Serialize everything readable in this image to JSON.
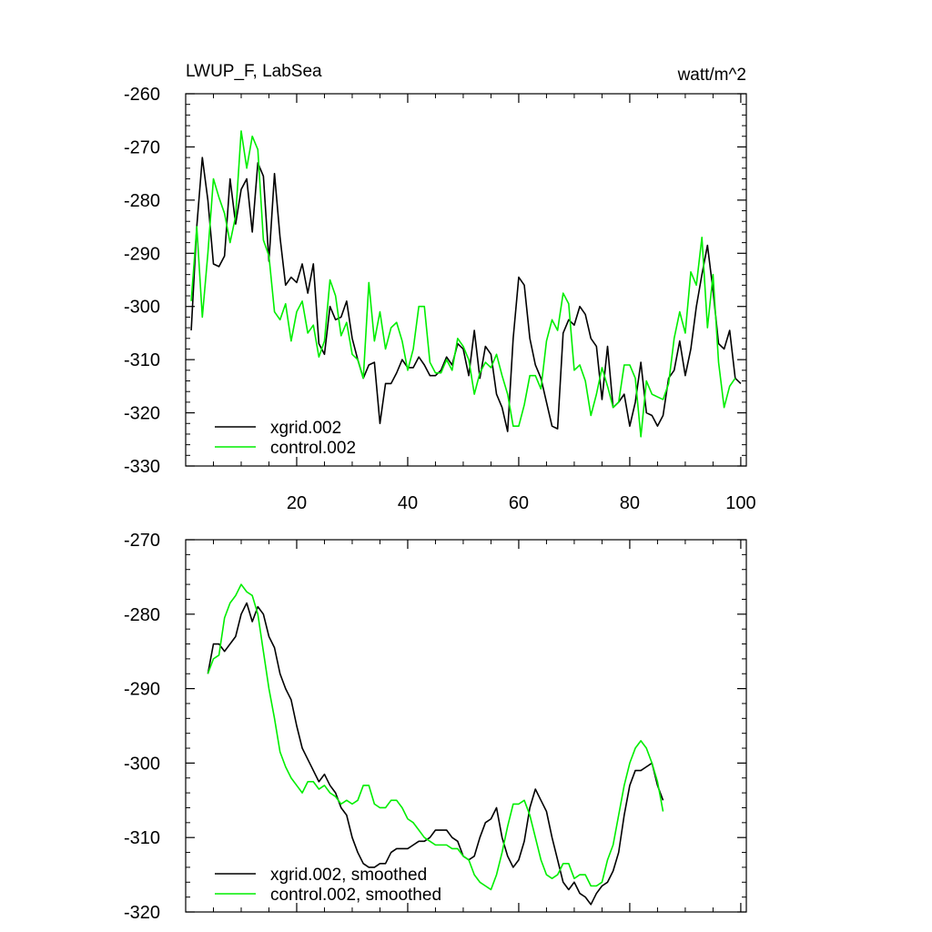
{
  "chart_data": [
    {
      "type": "line",
      "title": "LWUP_F, LabSea",
      "units": "watt/m^2",
      "xlim": [
        0,
        101
      ],
      "ylim": [
        -330,
        -260
      ],
      "xticks": [
        20,
        40,
        60,
        80,
        100
      ],
      "yticks": [
        -330,
        -320,
        -310,
        -300,
        -290,
        -280,
        -270,
        -260
      ],
      "x_tick_labels_shown": true,
      "grid": false,
      "legend_position": "bottom-left",
      "series": [
        {
          "name": "xgrid.002",
          "color": "#000000",
          "values": [
            -304.5,
            -285,
            -272,
            -280,
            -292,
            -292.5,
            -290.5,
            -276,
            -284.5,
            -278,
            -276,
            -286,
            -273,
            -275.5,
            -291.5,
            -275,
            -287,
            -296,
            -294.5,
            -295.5,
            -292,
            -297.5,
            -292,
            -307,
            -309,
            -300,
            -302.5,
            -302,
            -299,
            -306,
            -310,
            -313.5,
            -311,
            -310.5,
            -322,
            -314.5,
            -314.5,
            -312.5,
            -310,
            -311.5,
            -311.5,
            -309.5,
            -311,
            -313,
            -313,
            -312,
            -309.5,
            -311,
            -307,
            -308,
            -313,
            -304.5,
            -313.5,
            -307.5,
            -309,
            -316.5,
            -319,
            -323.5,
            -306,
            -294.5,
            -296,
            -306,
            -311,
            -313.5,
            -318,
            -322.5,
            -323,
            -305,
            -302.5,
            -303.5,
            -300,
            -301.5,
            -306,
            -307.5,
            -317.5,
            -307.5,
            -319,
            -318,
            -316.5,
            -322.5,
            -318,
            -310.5,
            -320,
            -320.5,
            -322.5,
            -320.5,
            -313.5,
            -312,
            -306.5,
            -313,
            -308,
            -300,
            -294,
            -288.5,
            -297,
            -307,
            -308,
            -304.5,
            -313.5,
            -314.5
          ]
        },
        {
          "name": "control.002",
          "color": "#00ee00",
          "values": [
            -299,
            -285,
            -302,
            -290,
            -276,
            -279.5,
            -282.5,
            -288,
            -283,
            -267,
            -274,
            -268,
            -270.5,
            -287.5,
            -290.5,
            -301,
            -302.5,
            -299.5,
            -306.5,
            -301,
            -299,
            -305,
            -303.5,
            -309.5,
            -306.5,
            -295,
            -298,
            -305.5,
            -303,
            -309,
            -310,
            -313.5,
            -295.5,
            -306.5,
            -301,
            -308,
            -304,
            -303,
            -306.5,
            -312,
            -308,
            -300,
            -300,
            -310.5,
            -312.5,
            -312.5,
            -310,
            -312,
            -306,
            -307.5,
            -310,
            -316.5,
            -312.5,
            -310.5,
            -311.5,
            -309,
            -313,
            -316.5,
            -322.5,
            -322.5,
            -318.5,
            -313,
            -313,
            -315.5,
            -306.5,
            -302.5,
            -304.5,
            -297.5,
            -299.5,
            -312,
            -311,
            -314,
            -320.5,
            -316.5,
            -311.5,
            -315,
            -319,
            -318,
            -311,
            -311,
            -313.5,
            -324.5,
            -314,
            -316.5,
            -317,
            -317.5,
            -314.5,
            -306,
            -301,
            -305,
            -293.5,
            -296,
            -287,
            -304,
            -294,
            -310.5,
            -319,
            -315,
            -313.5
          ]
        }
      ]
    },
    {
      "type": "line",
      "title": "",
      "xlim": [
        0,
        101
      ],
      "ylim": [
        -320,
        -270
      ],
      "xticks": [
        20,
        40,
        60,
        80,
        100
      ],
      "yticks": [
        -320,
        -310,
        -300,
        -290,
        -280,
        -270
      ],
      "x_tick_labels_shown": false,
      "grid": false,
      "legend_position": "bottom-left",
      "series": [
        {
          "name": "xgrid.002, smoothed",
          "color": "#000000",
          "values": [
            -288,
            -284,
            -284,
            -285,
            -284,
            -283,
            -280,
            -278.5,
            -281,
            -279,
            -280,
            -283,
            -284.5,
            -288,
            -290,
            -291.5,
            -295,
            -298,
            -299.5,
            -301,
            -302.5,
            -301.5,
            -303,
            -304,
            -306,
            -307,
            -310,
            -312,
            -313.5,
            -314,
            -314,
            -313.5,
            -313.5,
            -312,
            -311.5,
            -311.5,
            -311.5,
            -311,
            -310.5,
            -310.5,
            -310,
            -309,
            -309,
            -309,
            -310,
            -310.5,
            -312.5,
            -313,
            -312.5,
            -310,
            -308,
            -307.5,
            -306,
            -310,
            -312.5,
            -314,
            -313,
            -310.5,
            -306,
            -303.5,
            -305,
            -306.5,
            -310,
            -313,
            -316,
            -317,
            -316,
            -317.5,
            -318,
            -319,
            -317.5,
            -316.5,
            -316,
            -314.5,
            -312,
            -307,
            -303,
            -301,
            -301,
            -300.5,
            -300,
            -303,
            -305
          ]
        },
        {
          "name": "control.002, smoothed",
          "color": "#00ee00",
          "values": [
            -288,
            -286,
            -285.5,
            -280.5,
            -278.5,
            -277.5,
            -276,
            -277,
            -277.5,
            -280,
            -285,
            -290,
            -294,
            -298.5,
            -300.5,
            -302,
            -303,
            -304,
            -302.5,
            -302.5,
            -303.5,
            -303,
            -304,
            -304.5,
            -305.5,
            -305,
            -305.5,
            -305,
            -303,
            -303,
            -305.5,
            -306,
            -306,
            -305,
            -305,
            -306,
            -307.5,
            -308,
            -309,
            -310,
            -310.5,
            -311,
            -311,
            -311,
            -311.5,
            -311.5,
            -312.5,
            -313,
            -315,
            -316,
            -316.5,
            -317,
            -315,
            -312,
            -308.5,
            -305.5,
            -305.5,
            -305,
            -307,
            -310,
            -313,
            -315,
            -315.5,
            -315,
            -313.5,
            -313.5,
            -315.5,
            -315,
            -315,
            -316.5,
            -316.5,
            -316,
            -313,
            -311,
            -307,
            -303,
            -300,
            -298,
            -297,
            -298,
            -300,
            -302.5,
            -306.5
          ]
        }
      ]
    }
  ]
}
